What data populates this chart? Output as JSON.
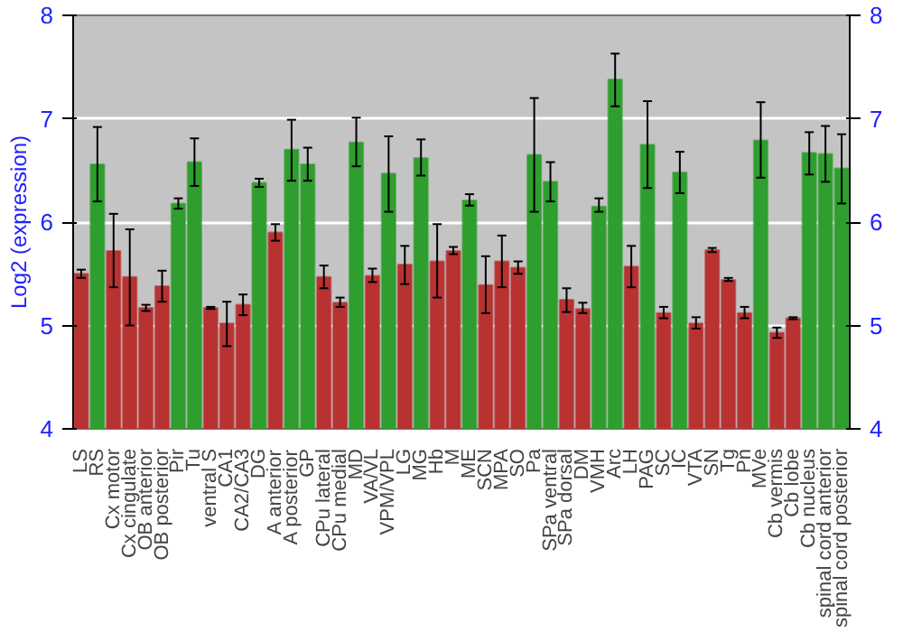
{
  "chart_data": {
    "type": "bar",
    "ylabel": "Log2 (expression)",
    "categories": [
      "LS",
      "RS",
      "Cx motor",
      "Cx cingulate",
      "OB anterior",
      "OB posterior",
      "Pir",
      "Tu",
      "ventral S",
      "CA1",
      "CA2/CA3",
      "DG",
      "A anterior",
      "A posterior",
      "GP",
      "CPu lateral",
      "CPu medial",
      "MD",
      "VA/VL",
      "VPM/VPL",
      "LG",
      "MG",
      "Hb",
      "M",
      "ME",
      "SCN",
      "MPA",
      "SO",
      "Pa",
      "SPa ventral",
      "SPa dorsal",
      "DM",
      "VMH",
      "Arc",
      "LH",
      "PAG",
      "SC",
      "IC",
      "VTA",
      "SN",
      "Tg",
      "Pn",
      "MVe",
      "Cb vermis",
      "Cb lobe",
      "Cb nucleus",
      "spinal cord anterior",
      "spinal cord posterior"
    ],
    "values": [
      5.5,
      6.56,
      5.72,
      5.47,
      5.17,
      5.38,
      6.18,
      6.58,
      5.17,
      5.02,
      5.2,
      6.38,
      5.9,
      6.7,
      6.56,
      5.47,
      5.22,
      6.77,
      5.48,
      6.47,
      5.59,
      6.62,
      5.62,
      5.72,
      6.21,
      5.39,
      5.62,
      5.56,
      6.65,
      6.39,
      5.25,
      5.16,
      6.15,
      7.38,
      5.57,
      6.75,
      5.12,
      6.48,
      5.02,
      5.73,
      5.44,
      5.12,
      6.79,
      4.93,
      5.07,
      6.67,
      6.66,
      6.52
    ],
    "errors": [
      [
        5.46,
        5.54
      ],
      [
        6.2,
        6.92
      ],
      [
        5.37,
        6.08
      ],
      [
        5.0,
        5.93
      ],
      [
        5.14,
        5.2
      ],
      [
        5.23,
        5.53
      ],
      [
        6.13,
        6.23
      ],
      [
        6.35,
        6.81
      ],
      [
        5.16,
        5.18
      ],
      [
        4.8,
        5.23
      ],
      [
        5.1,
        5.3
      ],
      [
        6.34,
        6.42
      ],
      [
        5.82,
        5.98
      ],
      [
        6.4,
        6.99
      ],
      [
        6.4,
        6.72
      ],
      [
        5.36,
        5.58
      ],
      [
        5.18,
        5.27
      ],
      [
        6.54,
        7.01
      ],
      [
        5.42,
        5.55
      ],
      [
        6.1,
        6.83
      ],
      [
        5.4,
        5.77
      ],
      [
        6.45,
        6.8
      ],
      [
        5.27,
        5.98
      ],
      [
        5.69,
        5.76
      ],
      [
        6.16,
        6.27
      ],
      [
        5.12,
        5.67
      ],
      [
        5.37,
        5.87
      ],
      [
        5.5,
        5.62
      ],
      [
        6.1,
        7.2
      ],
      [
        6.2,
        6.58
      ],
      [
        5.13,
        5.36
      ],
      [
        5.12,
        5.22
      ],
      [
        6.1,
        6.23
      ],
      [
        7.12,
        7.63
      ],
      [
        5.37,
        5.77
      ],
      [
        6.33,
        7.17
      ],
      [
        5.07,
        5.18
      ],
      [
        6.28,
        6.68
      ],
      [
        4.97,
        5.08
      ],
      [
        5.71,
        5.75
      ],
      [
        5.43,
        5.46
      ],
      [
        5.07,
        5.18
      ],
      [
        6.43,
        7.16
      ],
      [
        4.88,
        4.98
      ],
      [
        5.06,
        5.08
      ],
      [
        6.46,
        6.87
      ],
      [
        6.39,
        6.93
      ],
      [
        6.18,
        6.85
      ]
    ],
    "colors": [
      "#b83232",
      "#2e9e2e",
      "#b83232",
      "#b83232",
      "#b83232",
      "#b83232",
      "#2e9e2e",
      "#2e9e2e",
      "#b83232",
      "#b83232",
      "#b83232",
      "#2e9e2e",
      "#b83232",
      "#2e9e2e",
      "#2e9e2e",
      "#b83232",
      "#b83232",
      "#2e9e2e",
      "#b83232",
      "#2e9e2e",
      "#b83232",
      "#2e9e2e",
      "#b83232",
      "#b83232",
      "#2e9e2e",
      "#b83232",
      "#b83232",
      "#b83232",
      "#2e9e2e",
      "#2e9e2e",
      "#b83232",
      "#b83232",
      "#2e9e2e",
      "#2e9e2e",
      "#b83232",
      "#2e9e2e",
      "#b83232",
      "#2e9e2e",
      "#b83232",
      "#b83232",
      "#b83232",
      "#b83232",
      "#2e9e2e",
      "#b83232",
      "#b83232",
      "#2e9e2e",
      "#2e9e2e",
      "#2e9e2e"
    ],
    "ylim": [
      4,
      8
    ],
    "yticks": [
      4,
      5,
      6,
      7,
      8
    ],
    "y2lim": [
      4,
      8
    ],
    "y2ticks": [
      4,
      5,
      6,
      7,
      8
    ],
    "grid": "y"
  }
}
